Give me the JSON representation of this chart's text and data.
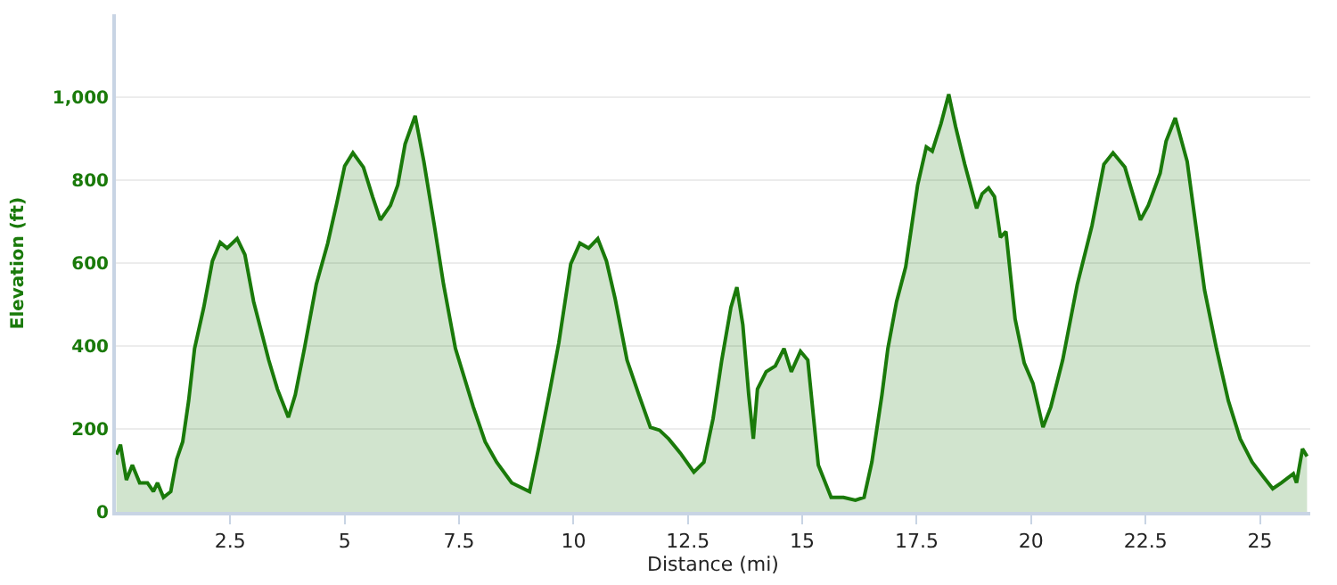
{
  "chart_data": {
    "type": "area",
    "xlabel": "Distance (mi)",
    "ylabel": "Elevation (ft)",
    "x": [
      0.01,
      0.1,
      0.23,
      0.36,
      0.52,
      0.69,
      0.82,
      0.91,
      1.04,
      1.2,
      1.33,
      1.46,
      1.59,
      1.72,
      1.92,
      2.11,
      2.28,
      2.43,
      2.65,
      2.82,
      3.01,
      3.21,
      3.34,
      3.53,
      3.77,
      3.92,
      4.12,
      4.38,
      4.63,
      4.83,
      5.0,
      5.18,
      5.41,
      5.61,
      5.78,
      6.0,
      6.16,
      6.32,
      6.54,
      6.73,
      6.96,
      7.16,
      7.42,
      7.81,
      8.07,
      8.32,
      8.65,
      9.04,
      9.24,
      9.49,
      9.68,
      9.94,
      10.14,
      10.33,
      10.53,
      10.72,
      10.91,
      11.17,
      11.43,
      11.68,
      11.88,
      12.08,
      12.34,
      12.63,
      12.85,
      13.05,
      13.24,
      13.44,
      13.57,
      13.7,
      13.83,
      13.93,
      14.02,
      14.21,
      14.41,
      14.6,
      14.76,
      14.96,
      15.12,
      15.35,
      15.63,
      15.9,
      16.16,
      16.35,
      16.52,
      16.74,
      16.87,
      17.06,
      17.26,
      17.52,
      17.71,
      17.84,
      18.03,
      18.2,
      18.35,
      18.55,
      18.81,
      18.93,
      19.07,
      19.2,
      19.33,
      19.45,
      19.65,
      19.85,
      20.04,
      20.26,
      20.43,
      20.69,
      21.01,
      21.33,
      21.59,
      21.79,
      22.05,
      22.24,
      22.39,
      22.56,
      22.82,
      22.95,
      23.15,
      23.41,
      23.6,
      23.79,
      24.05,
      24.31,
      24.57,
      24.83,
      25.08,
      25.28,
      25.47,
      25.73,
      25.8,
      25.93,
      26.03
    ],
    "series": [
      {
        "color": "#1a7a0a",
        "values": [
          138,
          162,
          77,
          113,
          70,
          70,
          49,
          70,
          35,
          49,
          127,
          169,
          268,
          394,
          493,
          605,
          650,
          636,
          659,
          620,
          507,
          422,
          366,
          296,
          228,
          282,
          394,
          549,
          648,
          746,
          834,
          866,
          831,
          760,
          704,
          739,
          788,
          887,
          955,
          845,
          690,
          549,
          394,
          253,
          169,
          120,
          70,
          49,
          155,
          296,
          408,
          598,
          648,
          636,
          659,
          605,
          514,
          366,
          282,
          204,
          197,
          176,
          141,
          96,
          120,
          225,
          366,
          493,
          542,
          451,
          282,
          176,
          296,
          338,
          352,
          394,
          338,
          387,
          366,
          113,
          35,
          35,
          28,
          35,
          120,
          282,
          394,
          507,
          591,
          788,
          880,
          870,
          936,
          1007,
          929,
          838,
          732,
          767,
          781,
          760,
          662,
          676,
          465,
          359,
          310,
          204,
          253,
          366,
          549,
          690,
          838,
          866,
          831,
          760,
          704,
          739,
          817,
          894,
          950,
          845,
          690,
          535,
          394,
          268,
          176,
          120,
          84,
          56,
          70,
          92,
          70,
          152,
          134
        ]
      }
    ],
    "xlim": [
      0,
      26.1
    ],
    "ylim": [
      0,
      1200
    ],
    "xticks": [
      2.5,
      5,
      7.5,
      10,
      12.5,
      15,
      17.5,
      20,
      22.5,
      25
    ],
    "yticks": [
      0,
      200,
      400,
      600,
      800,
      {
        "value": 1000,
        "label": "1,000"
      }
    ],
    "grid": "y"
  }
}
